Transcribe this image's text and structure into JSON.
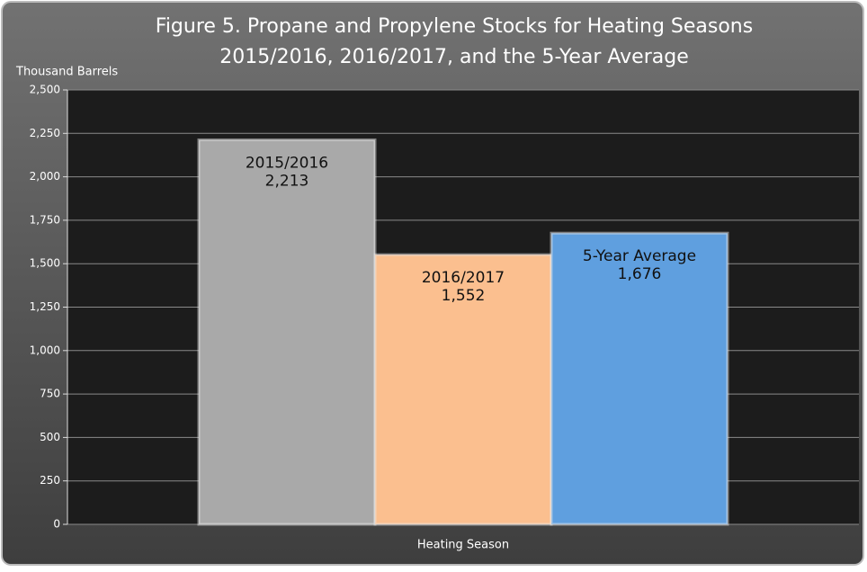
{
  "chart_data": {
    "type": "bar",
    "title": [
      "Figure 5. Propane and Propylene Stocks for Heating Seasons",
      "2015/2016, 2016/2017, and the 5-Year Average"
    ],
    "y_label": "Thousand Barrels",
    "x_label": "Heating Season",
    "categories": [
      "2015/2016",
      "2016/2017",
      "5-Year Average"
    ],
    "values": [
      2213,
      1552,
      1676
    ],
    "value_labels": [
      "2,213",
      "1,552",
      "1,676"
    ],
    "colors": [
      "#a9a9a9",
      "#fbbf8f",
      "#5f9fdf"
    ],
    "ylim": [
      0,
      2500
    ],
    "yticks": [
      0,
      250,
      500,
      750,
      {
        "value": 1000,
        "label": "1,000"
      },
      {
        "value": 1250,
        "label": "1,250"
      },
      {
        "value": 1500,
        "label": "1,500"
      },
      {
        "value": 1750,
        "label": "1,750"
      },
      {
        "value": 2000,
        "label": "2,000"
      },
      {
        "value": 2250,
        "label": "2,250"
      },
      {
        "value": 2500,
        "label": "2,500"
      }
    ],
    "grid": true
  }
}
